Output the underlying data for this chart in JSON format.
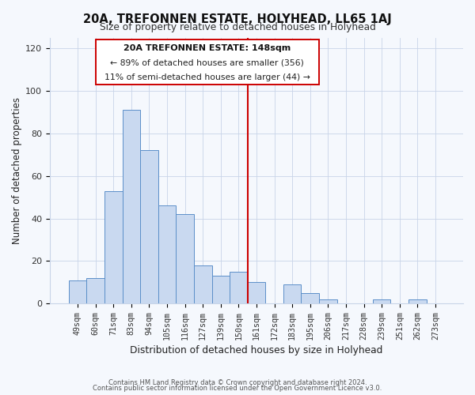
{
  "title": "20A, TREFONNEN ESTATE, HOLYHEAD, LL65 1AJ",
  "subtitle": "Size of property relative to detached houses in Holyhead",
  "xlabel": "Distribution of detached houses by size in Holyhead",
  "ylabel": "Number of detached properties",
  "bar_labels": [
    "49sqm",
    "60sqm",
    "71sqm",
    "83sqm",
    "94sqm",
    "105sqm",
    "116sqm",
    "127sqm",
    "139sqm",
    "150sqm",
    "161sqm",
    "172sqm",
    "183sqm",
    "195sqm",
    "206sqm",
    "217sqm",
    "228sqm",
    "239sqm",
    "251sqm",
    "262sqm",
    "273sqm"
  ],
  "bar_heights": [
    11,
    12,
    53,
    91,
    72,
    46,
    42,
    18,
    13,
    15,
    10,
    0,
    9,
    5,
    2,
    0,
    0,
    2,
    0,
    2,
    0
  ],
  "bar_color": "#c9d9f0",
  "bar_edge_color": "#5b8fc9",
  "vline_x": 9.5,
  "vline_color": "#cc0000",
  "ylim": [
    0,
    125
  ],
  "yticks": [
    0,
    20,
    40,
    60,
    80,
    100,
    120
  ],
  "annotation_title": "20A TREFONNEN ESTATE: 148sqm",
  "annotation_line1": "← 89% of detached houses are smaller (356)",
  "annotation_line2": "11% of semi-detached houses are larger (44) →",
  "annotation_box_color": "#ffffff",
  "annotation_box_edge": "#cc0000",
  "footer_line1": "Contains HM Land Registry data © Crown copyright and database right 2024.",
  "footer_line2": "Contains public sector information licensed under the Open Government Licence v3.0.",
  "background_color": "#f5f8fd",
  "grid_color": "#c8d4e8"
}
